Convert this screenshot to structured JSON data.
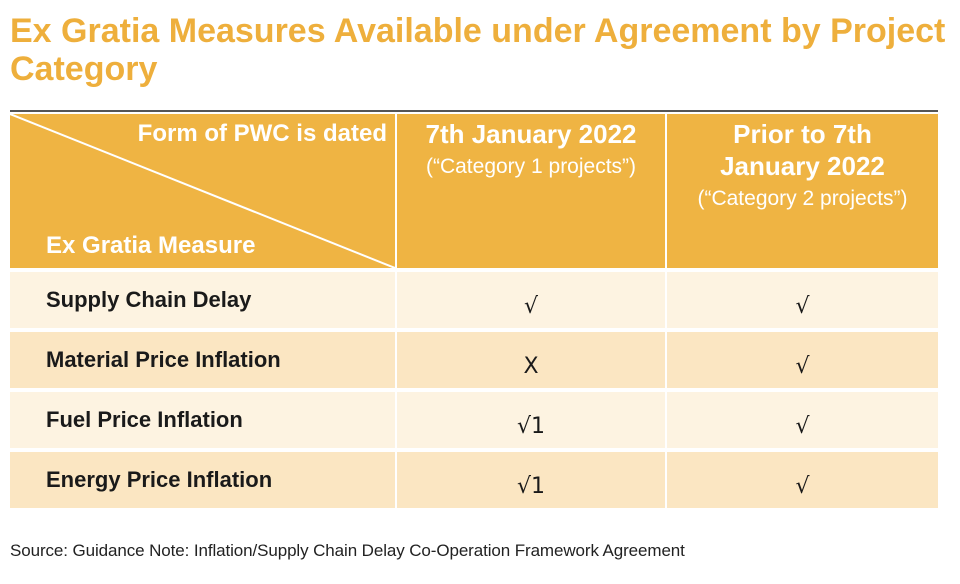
{
  "title": "Ex Gratia Measures Available under Agreement by Project Category",
  "table": {
    "header": {
      "diagonal_top": "Form of PWC is dated",
      "diagonal_bottom": "Ex Gratia Measure",
      "col1_main": "7th January 2022",
      "col1_sub": "(“Category 1 projects”)",
      "col2_main": "Prior to 7th January 2022",
      "col2_sub": "(“Category 2 projects”)"
    },
    "rows": [
      {
        "measure": "Supply Chain Delay",
        "category1": "√",
        "category2": "√"
      },
      {
        "measure": "Material Price Inflation",
        "category1": "X",
        "category2": "√"
      },
      {
        "measure": "Fuel Price Inflation",
        "category1": "√1",
        "category2": "√"
      },
      {
        "measure": "Energy Price Inflation",
        "category1": "√1",
        "category2": "√"
      }
    ]
  },
  "source": "Source: Guidance Note: Inflation/Supply Chain Delay Co-Operation Framework Agreement",
  "colors": {
    "accent": "#eeaf3c",
    "header_fill": "#efb443",
    "row_light": "#fdf3e1",
    "row_dark": "#fbe6c2"
  }
}
